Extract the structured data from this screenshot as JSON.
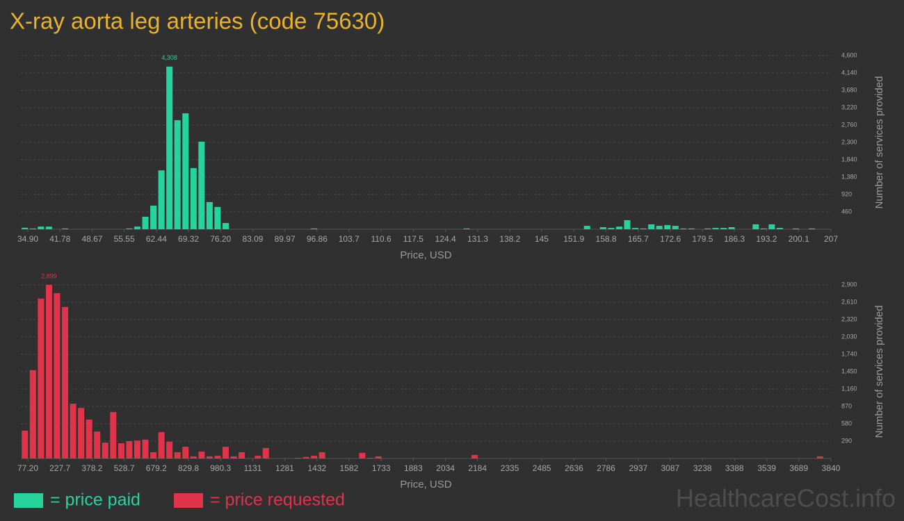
{
  "title": "X-ray aorta leg arteries (code 75630)",
  "watermark": "HealthcareCost.info",
  "chart_data": [
    {
      "type": "bar",
      "x_label": "Price, USD",
      "y_label": "Number of services provided",
      "grid": true,
      "xlim": [
        33.4,
        207
      ],
      "xticks": [
        {
          "value": 34.9,
          "label": "34.90"
        },
        41.78,
        48.67,
        55.55,
        62.44,
        69.32,
        {
          "value": 76.2,
          "label": "76.20"
        },
        83.09,
        89.97,
        96.86,
        103.7,
        110.6,
        117.5,
        124.4,
        131.3,
        138.2,
        145,
        151.9,
        158.8,
        165.7,
        172.6,
        179.5,
        186.3,
        193.2,
        200.1,
        207
      ],
      "ylim": [
        0,
        4600
      ],
      "yticks": [
        460,
        920,
        {
          "value": 1380,
          "label": "1,380"
        },
        {
          "value": 1840,
          "label": "1,840"
        },
        {
          "value": 2300,
          "label": "2,300"
        },
        {
          "value": 2760,
          "label": "2,760"
        },
        {
          "value": 3220,
          "label": "3,220"
        },
        {
          "value": 3680,
          "label": "3,680"
        },
        {
          "value": 4140,
          "label": "4,140"
        },
        {
          "value": 4600,
          "label": "4,600"
        }
      ],
      "series": [
        {
          "name": "= price paid",
          "color": "#26d49b",
          "x": [
            34.26,
            35.98,
            37.7,
            39.42,
            42.87,
            56.63,
            58.35,
            60.08,
            61.8,
            63.52,
            65.24,
            66.96,
            68.68,
            70.4,
            72.12,
            73.84,
            75.56,
            77.29,
            96.22,
            128.92,
            154.73,
            158.17,
            159.89,
            161.61,
            163.34,
            165.06,
            166.78,
            168.5,
            170.22,
            171.94,
            173.66,
            175.38,
            177.1,
            180.55,
            182.27,
            183.99,
            185.71,
            190.87,
            192.59,
            194.31,
            196.03,
            199.48,
            202.92
          ],
          "values": [
            40,
            20,
            70,
            70,
            20,
            20,
            70,
            330,
            625,
            1560,
            4308,
            2890,
            3070,
            1620,
            2320,
            720,
            590,
            165,
            20,
            20,
            90,
            55,
            35,
            70,
            240,
            35,
            20,
            130,
            90,
            110,
            90,
            20,
            20,
            20,
            35,
            35,
            55,
            130,
            20,
            130,
            35,
            20,
            20
          ],
          "value_labels": [
            null,
            null,
            null,
            null,
            null,
            null,
            null,
            null,
            null,
            null,
            "4,308",
            null,
            null,
            null,
            null,
            null,
            null,
            null,
            null,
            null,
            null,
            null,
            null,
            null,
            null,
            null,
            null,
            null,
            null,
            null,
            null,
            null,
            null,
            null,
            null,
            null,
            null,
            null,
            null,
            null,
            null,
            null,
            null
          ]
        }
      ]
    },
    {
      "type": "bar",
      "x_label": "Price, USD",
      "y_label": "Number of services provided",
      "grid": true,
      "xlim": [
        44.6,
        3840
      ],
      "xticks": [
        {
          "value": 77.2,
          "label": "77.20"
        },
        227.7,
        378.2,
        528.7,
        679.2,
        829.8,
        980.3,
        1131,
        1281,
        1432,
        1582,
        1733,
        1883,
        2034,
        2184,
        2335,
        2485,
        2636,
        2786,
        2937,
        3087,
        3238,
        3388,
        3539,
        3689,
        3840
      ],
      "ylim": [
        0,
        2900
      ],
      "yticks": [
        290,
        580,
        870,
        {
          "value": 1160,
          "label": "1,160"
        },
        {
          "value": 1450,
          "label": "1,450"
        },
        {
          "value": 1740,
          "label": "1,740"
        },
        {
          "value": 2030,
          "label": "2,030"
        },
        {
          "value": 2320,
          "label": "2,320"
        },
        {
          "value": 2610,
          "label": "2,610"
        },
        {
          "value": 2900,
          "label": "2,900"
        }
      ],
      "series": [
        {
          "name": "= price requested",
          "color": "#e0344b",
          "x": [
            63.4,
            101.0,
            138.7,
            176.3,
            213.9,
            251.6,
            289.2,
            326.8,
            364.4,
            402.1,
            439.7,
            477.3,
            515.0,
            552.6,
            590.2,
            627.9,
            665.5,
            703.1,
            740.7,
            778.4,
            816.0,
            853.6,
            891.3,
            928.9,
            966.5,
            1004.2,
            1041.8,
            1079.4,
            1154.7,
            1192.3,
            1342.8,
            1380.5,
            1418.1,
            1455.7,
            1643.9,
            1681.5,
            1719.1,
            2170.7,
            3788.8
          ],
          "values": [
            465,
            1475,
            2670,
            2899,
            2760,
            2530,
            915,
            845,
            650,
            450,
            265,
            775,
            255,
            290,
            300,
            315,
            105,
            440,
            280,
            105,
            195,
            35,
            115,
            35,
            45,
            195,
            35,
            105,
            45,
            175,
            10,
            25,
            45,
            105,
            95,
            10,
            35,
            60,
            35
          ],
          "value_labels": [
            null,
            null,
            null,
            "2,899",
            null,
            null,
            null,
            null,
            null,
            null,
            null,
            null,
            null,
            null,
            null,
            null,
            null,
            null,
            null,
            null,
            null,
            null,
            null,
            null,
            null,
            null,
            null,
            null,
            null,
            null,
            null,
            null,
            null,
            null,
            null,
            null,
            null,
            null,
            null
          ]
        }
      ]
    }
  ]
}
